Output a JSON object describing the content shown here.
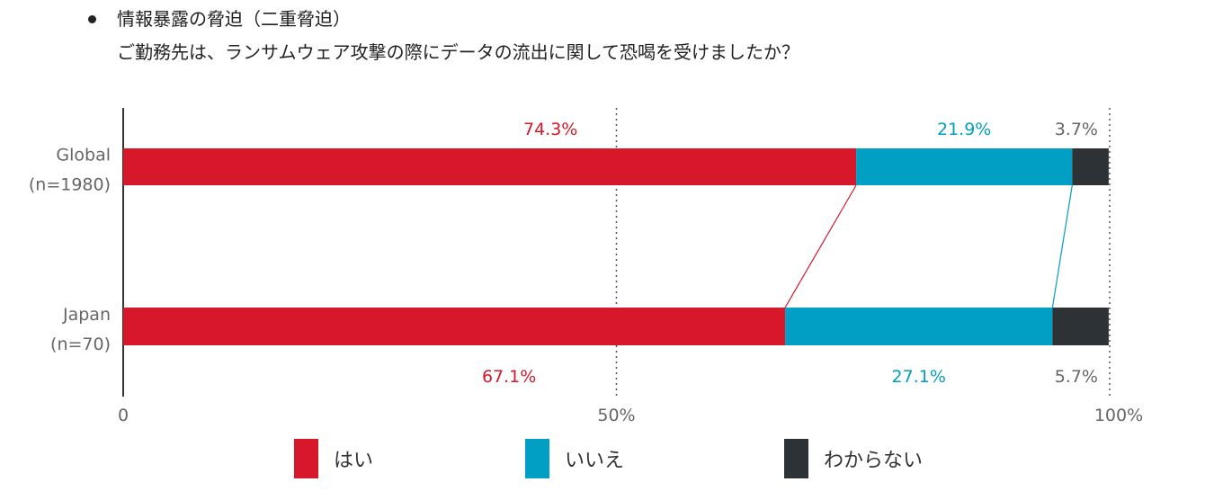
{
  "header": {
    "title": "情報暴露の脅迫（二重脅迫）",
    "question": "ご勤務先は、ランサムウェア攻撃の際にデータの流出に関して恐喝を受けましたか？"
  },
  "colors": {
    "yes": "#d7182a",
    "no": "#009fc3",
    "unknown": "#2d3236",
    "axis": "#333333",
    "text": "#666666"
  },
  "chart_data": {
    "type": "bar",
    "orientation": "horizontal",
    "stacked": true,
    "categories": [
      "Global\n(n=1980)",
      "Japan\n(n=70)"
    ],
    "category_lines": [
      [
        "Global",
        "(n=1980)"
      ],
      [
        "Japan",
        "(n=70)"
      ]
    ],
    "series": [
      {
        "name": "はい",
        "color": "#d7182a",
        "values": [
          74.3,
          67.1
        ],
        "labels": [
          "74.3%",
          "67.1%"
        ]
      },
      {
        "name": "いいえ",
        "color": "#009fc3",
        "values": [
          21.9,
          27.1
        ],
        "labels": [
          "21.9%",
          "27.1%"
        ]
      },
      {
        "name": "わからない",
        "color": "#2d3236",
        "values": [
          3.7,
          5.7
        ],
        "labels": [
          "3.7%",
          "5.7%"
        ]
      }
    ],
    "x_ticks": [
      "0",
      "50%",
      "100%"
    ],
    "xlim": [
      0,
      100
    ],
    "grid": "dotted at 50% and 100%",
    "connector_lines": true,
    "legend_position": "bottom"
  },
  "legend": {
    "items": [
      {
        "label": "はい",
        "color": "#d7182a"
      },
      {
        "label": "いいえ",
        "color": "#009fc3"
      },
      {
        "label": "わからない",
        "color": "#2d3236"
      }
    ]
  }
}
